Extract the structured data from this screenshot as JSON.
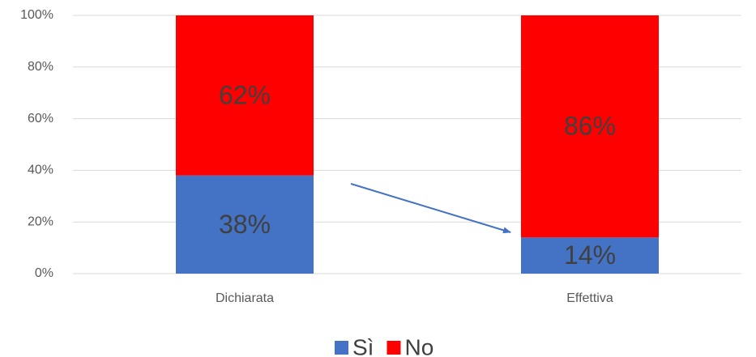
{
  "chart_data": {
    "type": "stacked_bar",
    "categories": [
      "Dichiarata",
      "Effettiva"
    ],
    "series": [
      {
        "name": "Sì",
        "color": "#4472c4",
        "values": [
          38,
          14
        ],
        "value_labels": [
          "38%",
          "14%"
        ]
      },
      {
        "name": "No",
        "color": "#ff0000",
        "values": [
          62,
          86
        ],
        "value_labels": [
          "62%",
          "86%"
        ]
      }
    ],
    "ylim": [
      0,
      100
    ],
    "yticks": [
      {
        "value": 0,
        "label": "0%"
      },
      {
        "value": 20,
        "label": "20%"
      },
      {
        "value": 40,
        "label": "40%"
      },
      {
        "value": 60,
        "label": "60%"
      },
      {
        "value": 80,
        "label": "80%"
      },
      {
        "value": 100,
        "label": "100%"
      }
    ],
    "grid": true,
    "legend": "bottom"
  }
}
